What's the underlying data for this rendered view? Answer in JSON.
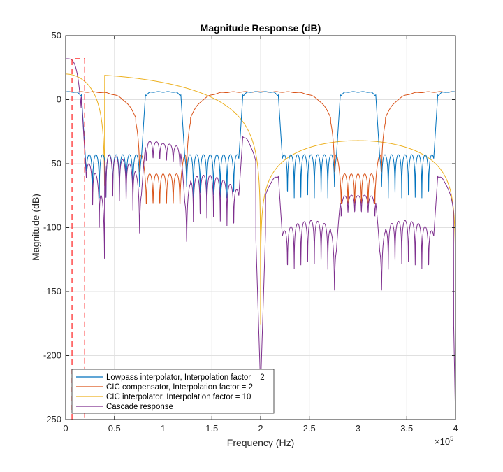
{
  "chart_data": {
    "type": "line",
    "title": "Magnitude Response (dB)",
    "xlabel": "Frequency (Hz)",
    "ylabel": "Magnitude (dB)",
    "x_exponent_label": "×10",
    "x_exponent_power": "5",
    "xlim": [
      0,
      4
    ],
    "ylim": [
      -250,
      50
    ],
    "x_ticks": [
      0,
      0.5,
      1,
      1.5,
      2,
      2.5,
      3,
      3.5,
      4
    ],
    "x_tick_labels": [
      "0",
      "0.5",
      "1",
      "1.5",
      "2",
      "2.5",
      "3",
      "3.5",
      "4"
    ],
    "y_ticks": [
      -250,
      -200,
      -150,
      -100,
      -50,
      0,
      50
    ],
    "y_tick_labels": [
      "-250",
      "-200",
      "-150",
      "-100",
      "-50",
      "0",
      "50"
    ],
    "grid": true,
    "legend_position": "bottom-left",
    "series": [
      {
        "name": "Lowpass interpolator, Interpolation factor = 2",
        "color": "#0072BD",
        "stopband_level": -43,
        "passband_level": 6,
        "passbands": [
          [
            0,
            0.16
          ],
          [
            0.82,
            1.18
          ],
          [
            1.82,
            2.18
          ],
          [
            2.82,
            3.18
          ],
          [
            3.82,
            4
          ]
        ]
      },
      {
        "name": "CIC compensator, Interpolation factor = 2",
        "color": "#D95319",
        "passband_level": 6,
        "lobe_centers": [
          0,
          2,
          4
        ],
        "null_centers": [
          1,
          3
        ]
      },
      {
        "name": "CIC interpolator, Interpolation factor = 10",
        "color": "#EDB120",
        "peak_level": 20,
        "sidelobe_level": -32,
        "nulls": [
          0.4,
          4
        ]
      },
      {
        "name": "Cascade response",
        "color": "#7E2F8E",
        "peak_level": 32,
        "deep_null_x": 2,
        "deep_null_level": -225
      }
    ],
    "spec_box": {
      "color": "#FF3030",
      "x_start": 0.065,
      "x_end": 0.195,
      "level": 32
    }
  }
}
